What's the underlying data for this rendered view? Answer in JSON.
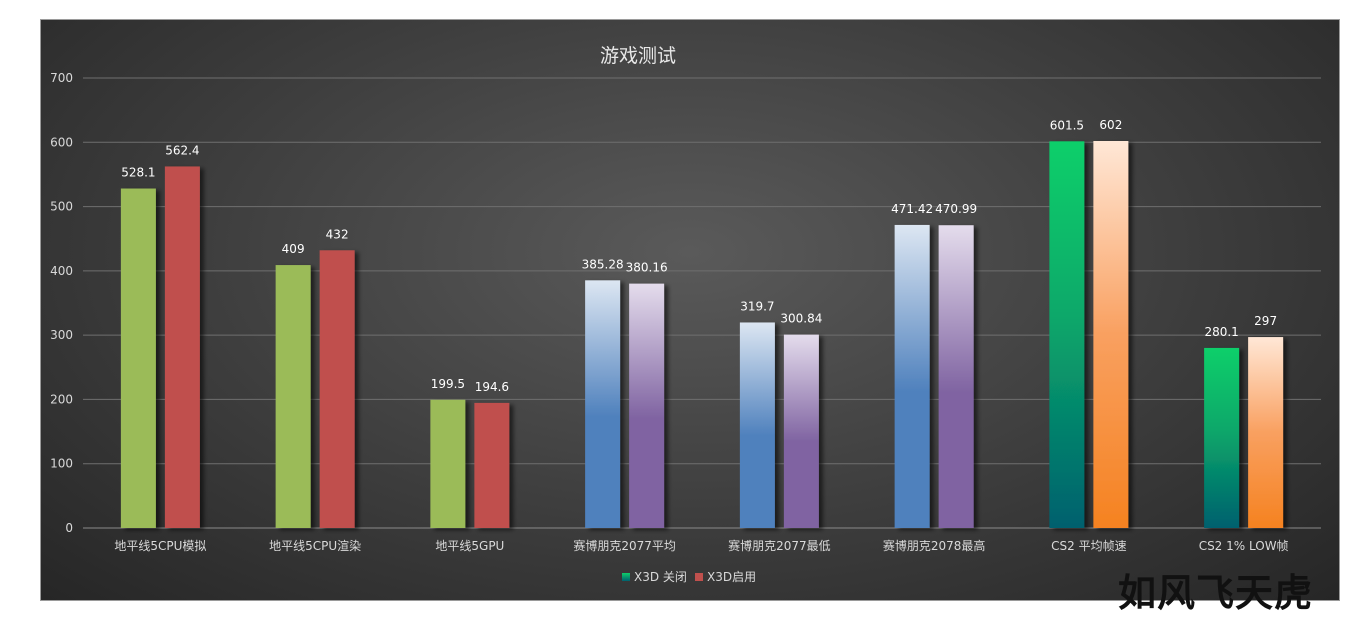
{
  "watermark": "如风飞天虎",
  "chart_data": {
    "type": "bar",
    "title": "游戏测试",
    "ylim": [
      0,
      700
    ],
    "yticks": [
      0,
      100,
      200,
      300,
      400,
      500,
      600,
      700
    ],
    "grid": true,
    "legend_position": "bottom",
    "categories": [
      "地平线5CPU模拟",
      "地平线5CPU渲染",
      "地平线5GPU",
      "赛博朋克2077平均",
      "赛博朋克2077最低",
      "赛博朋克2078最高",
      "CS2 平均帧速",
      "CS2 1% LOW帧"
    ],
    "series": [
      {
        "name": "X3D 关闭",
        "values": [
          528.1,
          409,
          199.5,
          385.28,
          319.7,
          471.42,
          601.5,
          280.1
        ],
        "labels": [
          "528.1",
          "409",
          "199.5",
          "385.28",
          "319.7",
          "471.42",
          "601.5",
          "280.1"
        ]
      },
      {
        "name": "X3D启用",
        "values": [
          562.4,
          432,
          194.6,
          380.16,
          300.84,
          470.99,
          602,
          297
        ],
        "labels": [
          "562.4",
          "432",
          "194.6",
          "380.16",
          "300.84",
          "470.99",
          "602",
          "297"
        ]
      }
    ],
    "colors": {
      "off_green": "#9bbb59",
      "on_red": "#c0504d",
      "off_blue_top": "#dce6f2",
      "off_blue_bottom": "#4f81bd",
      "on_purple_top": "#e4dcec",
      "on_purple_bottom": "#8064a2",
      "off_teal_top": "#0fcf6a",
      "off_teal_bottom": "#00606e",
      "on_orange_top": "#ffe7d6",
      "on_orange_bottom": "#f58220",
      "gridline": "#6f6f6f",
      "legend_off": "#1fae7a",
      "legend_on": "#c0504d"
    }
  }
}
